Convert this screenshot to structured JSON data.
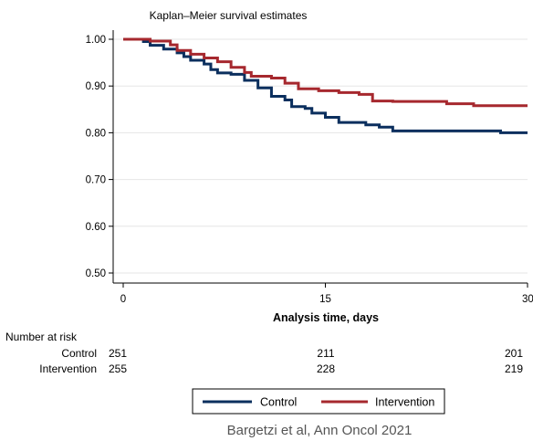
{
  "chart_data": {
    "type": "line",
    "title": "Kaplan–Meier survival estimates",
    "xlabel": "Analysis time, days",
    "ylabel": "",
    "xlim": [
      0,
      30
    ],
    "ylim": [
      0.5,
      1.0
    ],
    "x_ticks": [
      "0",
      "15",
      "30"
    ],
    "x_tick_values": [
      0,
      15,
      30
    ],
    "y_ticks": [
      "1.00",
      "0.90",
      "0.80",
      "0.70",
      "0.60",
      "0.50"
    ],
    "y_tick_values": [
      1.0,
      0.9,
      0.8,
      0.7,
      0.6,
      0.5
    ],
    "grid": "horizontal",
    "legend_position": "bottom",
    "series": [
      {
        "name": "Control",
        "color": "#0b2f5e",
        "step_points": [
          [
            0,
            1.0
          ],
          [
            1.5,
            0.995
          ],
          [
            2,
            0.987
          ],
          [
            3,
            0.979
          ],
          [
            4,
            0.971
          ],
          [
            4.5,
            0.963
          ],
          [
            5,
            0.955
          ],
          [
            6,
            0.947
          ],
          [
            6.5,
            0.935
          ],
          [
            7,
            0.928
          ],
          [
            8,
            0.925
          ],
          [
            9,
            0.912
          ],
          [
            10,
            0.896
          ],
          [
            11,
            0.878
          ],
          [
            12,
            0.87
          ],
          [
            12.5,
            0.856
          ],
          [
            13.5,
            0.852
          ],
          [
            14,
            0.842
          ],
          [
            15,
            0.833
          ],
          [
            16,
            0.822
          ],
          [
            18,
            0.817
          ],
          [
            19,
            0.812
          ],
          [
            20,
            0.804
          ],
          [
            28,
            0.8
          ],
          [
            30,
            0.8
          ]
        ]
      },
      {
        "name": "Intervention",
        "color": "#a6282e",
        "step_points": [
          [
            0,
            1.0
          ],
          [
            2,
            0.996
          ],
          [
            3.5,
            0.988
          ],
          [
            4,
            0.976
          ],
          [
            5,
            0.968
          ],
          [
            6,
            0.96
          ],
          [
            7,
            0.952
          ],
          [
            8,
            0.94
          ],
          [
            9,
            0.929
          ],
          [
            9.5,
            0.921
          ],
          [
            11,
            0.917
          ],
          [
            12,
            0.906
          ],
          [
            13,
            0.894
          ],
          [
            14.5,
            0.89
          ],
          [
            16,
            0.886
          ],
          [
            17.5,
            0.882
          ],
          [
            18.5,
            0.868
          ],
          [
            20,
            0.867
          ],
          [
            24,
            0.862
          ],
          [
            26,
            0.858
          ],
          [
            30,
            0.858
          ]
        ]
      }
    ]
  },
  "risk_table": {
    "header": "Number at risk",
    "rows": [
      {
        "label": "Control",
        "values": [
          "251",
          "211",
          "201"
        ]
      },
      {
        "label": "Intervention",
        "values": [
          "255",
          "228",
          "219"
        ]
      }
    ]
  },
  "caption": "Bargetzi et al, Ann Oncol 2021",
  "colors": {
    "control": "#0b2f5e",
    "intervention": "#a6282e",
    "grid": "#e6e6e6"
  }
}
